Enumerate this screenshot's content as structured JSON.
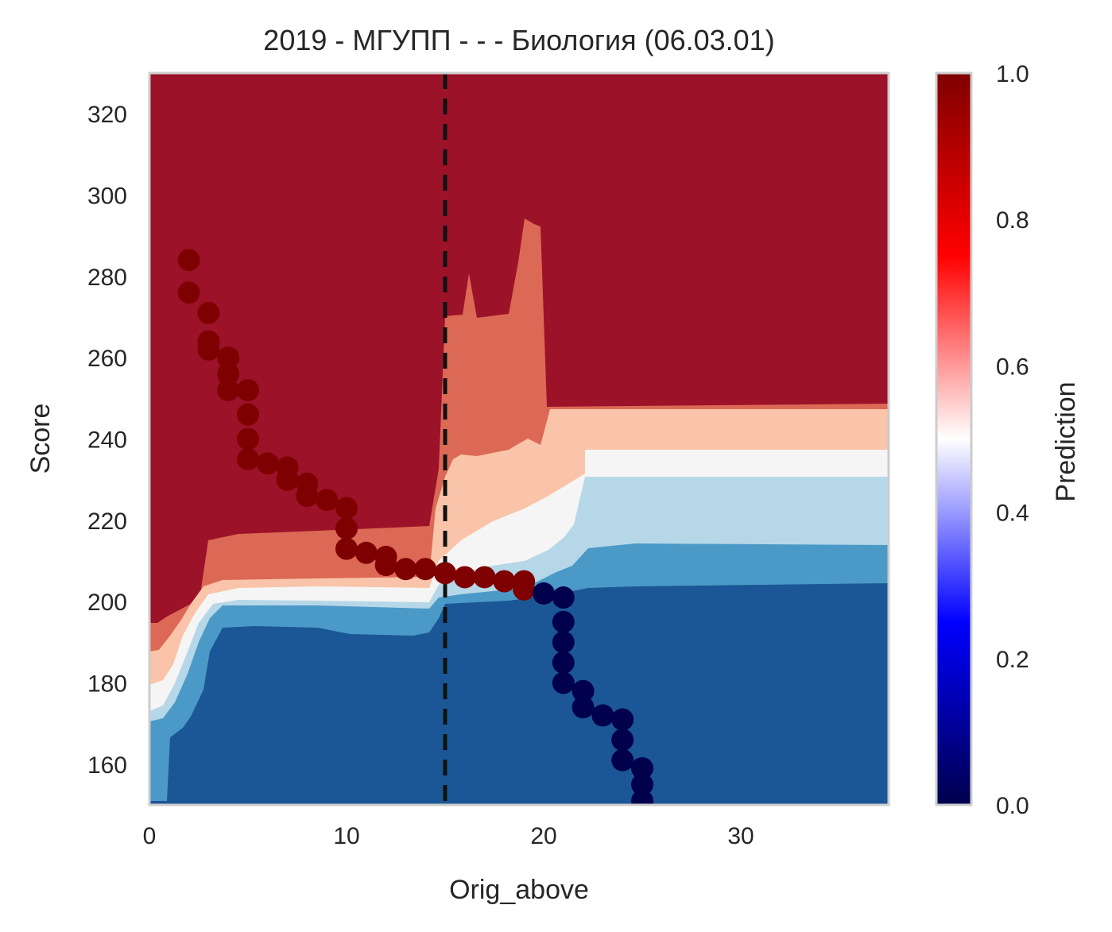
{
  "chart_data": {
    "type": "heatmap",
    "title": "2019 - МГУПП - - - Биология (06.03.01)",
    "xlabel": "Orig_above",
    "ylabel": "Score",
    "xlim": [
      0,
      37.5
    ],
    "ylim": [
      150,
      330
    ],
    "xticks": [
      0,
      10,
      20,
      30
    ],
    "yticks": [
      160,
      180,
      200,
      220,
      240,
      260,
      280,
      300,
      320
    ],
    "grid": false,
    "threshold_line": {
      "x": 15,
      "style": "dashed",
      "color": "#111111"
    },
    "colorbar": {
      "label": "Prediction",
      "range": [
        0,
        1
      ],
      "ticks": [
        "0.0",
        "0.2",
        "0.4",
        "0.6",
        "0.8",
        "1.0"
      ],
      "colormap": "seismic",
      "stops": [
        "#00004c",
        "#0000ff",
        "#ffffff",
        "#ff0000",
        "#7f0000"
      ]
    },
    "contour_levels": [
      {
        "level": "0.0-0.2",
        "color": "#1b5796"
      },
      {
        "level": "0.2-0.3",
        "color": "#4b99c6"
      },
      {
        "level": "0.3-0.5",
        "color": "#b6d7e8"
      },
      {
        "level": "0.5-0.6",
        "color": "#f5f5f5"
      },
      {
        "level": "0.6-0.7",
        "color": "#f9c4a9"
      },
      {
        "level": "0.7-0.8",
        "color": "#dc6955"
      },
      {
        "level": "0.8-1.0",
        "color": "#9c1229"
      }
    ],
    "series": [
      {
        "class": 1,
        "color": "#7f0000",
        "points": [
          [
            2,
            284
          ],
          [
            2,
            276
          ],
          [
            3,
            271
          ],
          [
            3,
            264
          ],
          [
            3,
            262
          ],
          [
            4,
            260
          ],
          [
            4,
            256
          ],
          [
            4,
            252
          ],
          [
            5,
            252
          ],
          [
            5,
            246
          ],
          [
            5,
            240
          ],
          [
            5,
            235
          ],
          [
            6,
            234
          ],
          [
            7,
            233
          ],
          [
            7,
            230
          ],
          [
            8,
            229
          ],
          [
            8,
            226
          ],
          [
            9,
            225
          ],
          [
            10,
            223
          ],
          [
            10,
            218
          ],
          [
            10,
            213
          ],
          [
            11,
            212
          ],
          [
            12,
            211
          ],
          [
            12,
            209
          ],
          [
            13,
            208
          ],
          [
            14,
            208
          ],
          [
            15,
            207
          ],
          [
            16,
            206
          ],
          [
            17,
            206
          ],
          [
            18,
            205
          ],
          [
            19,
            205
          ],
          [
            19,
            203
          ]
        ]
      },
      {
        "class": 0,
        "color": "#00004c",
        "points": [
          [
            20,
            202
          ],
          [
            21,
            201
          ],
          [
            21,
            195
          ],
          [
            21,
            190
          ],
          [
            21,
            185
          ],
          [
            21,
            180
          ],
          [
            22,
            178
          ],
          [
            22,
            174
          ],
          [
            23,
            172
          ],
          [
            24,
            171
          ],
          [
            24,
            166
          ],
          [
            24,
            161
          ],
          [
            25,
            159
          ],
          [
            25,
            155
          ],
          [
            25,
            151
          ]
        ]
      }
    ]
  }
}
